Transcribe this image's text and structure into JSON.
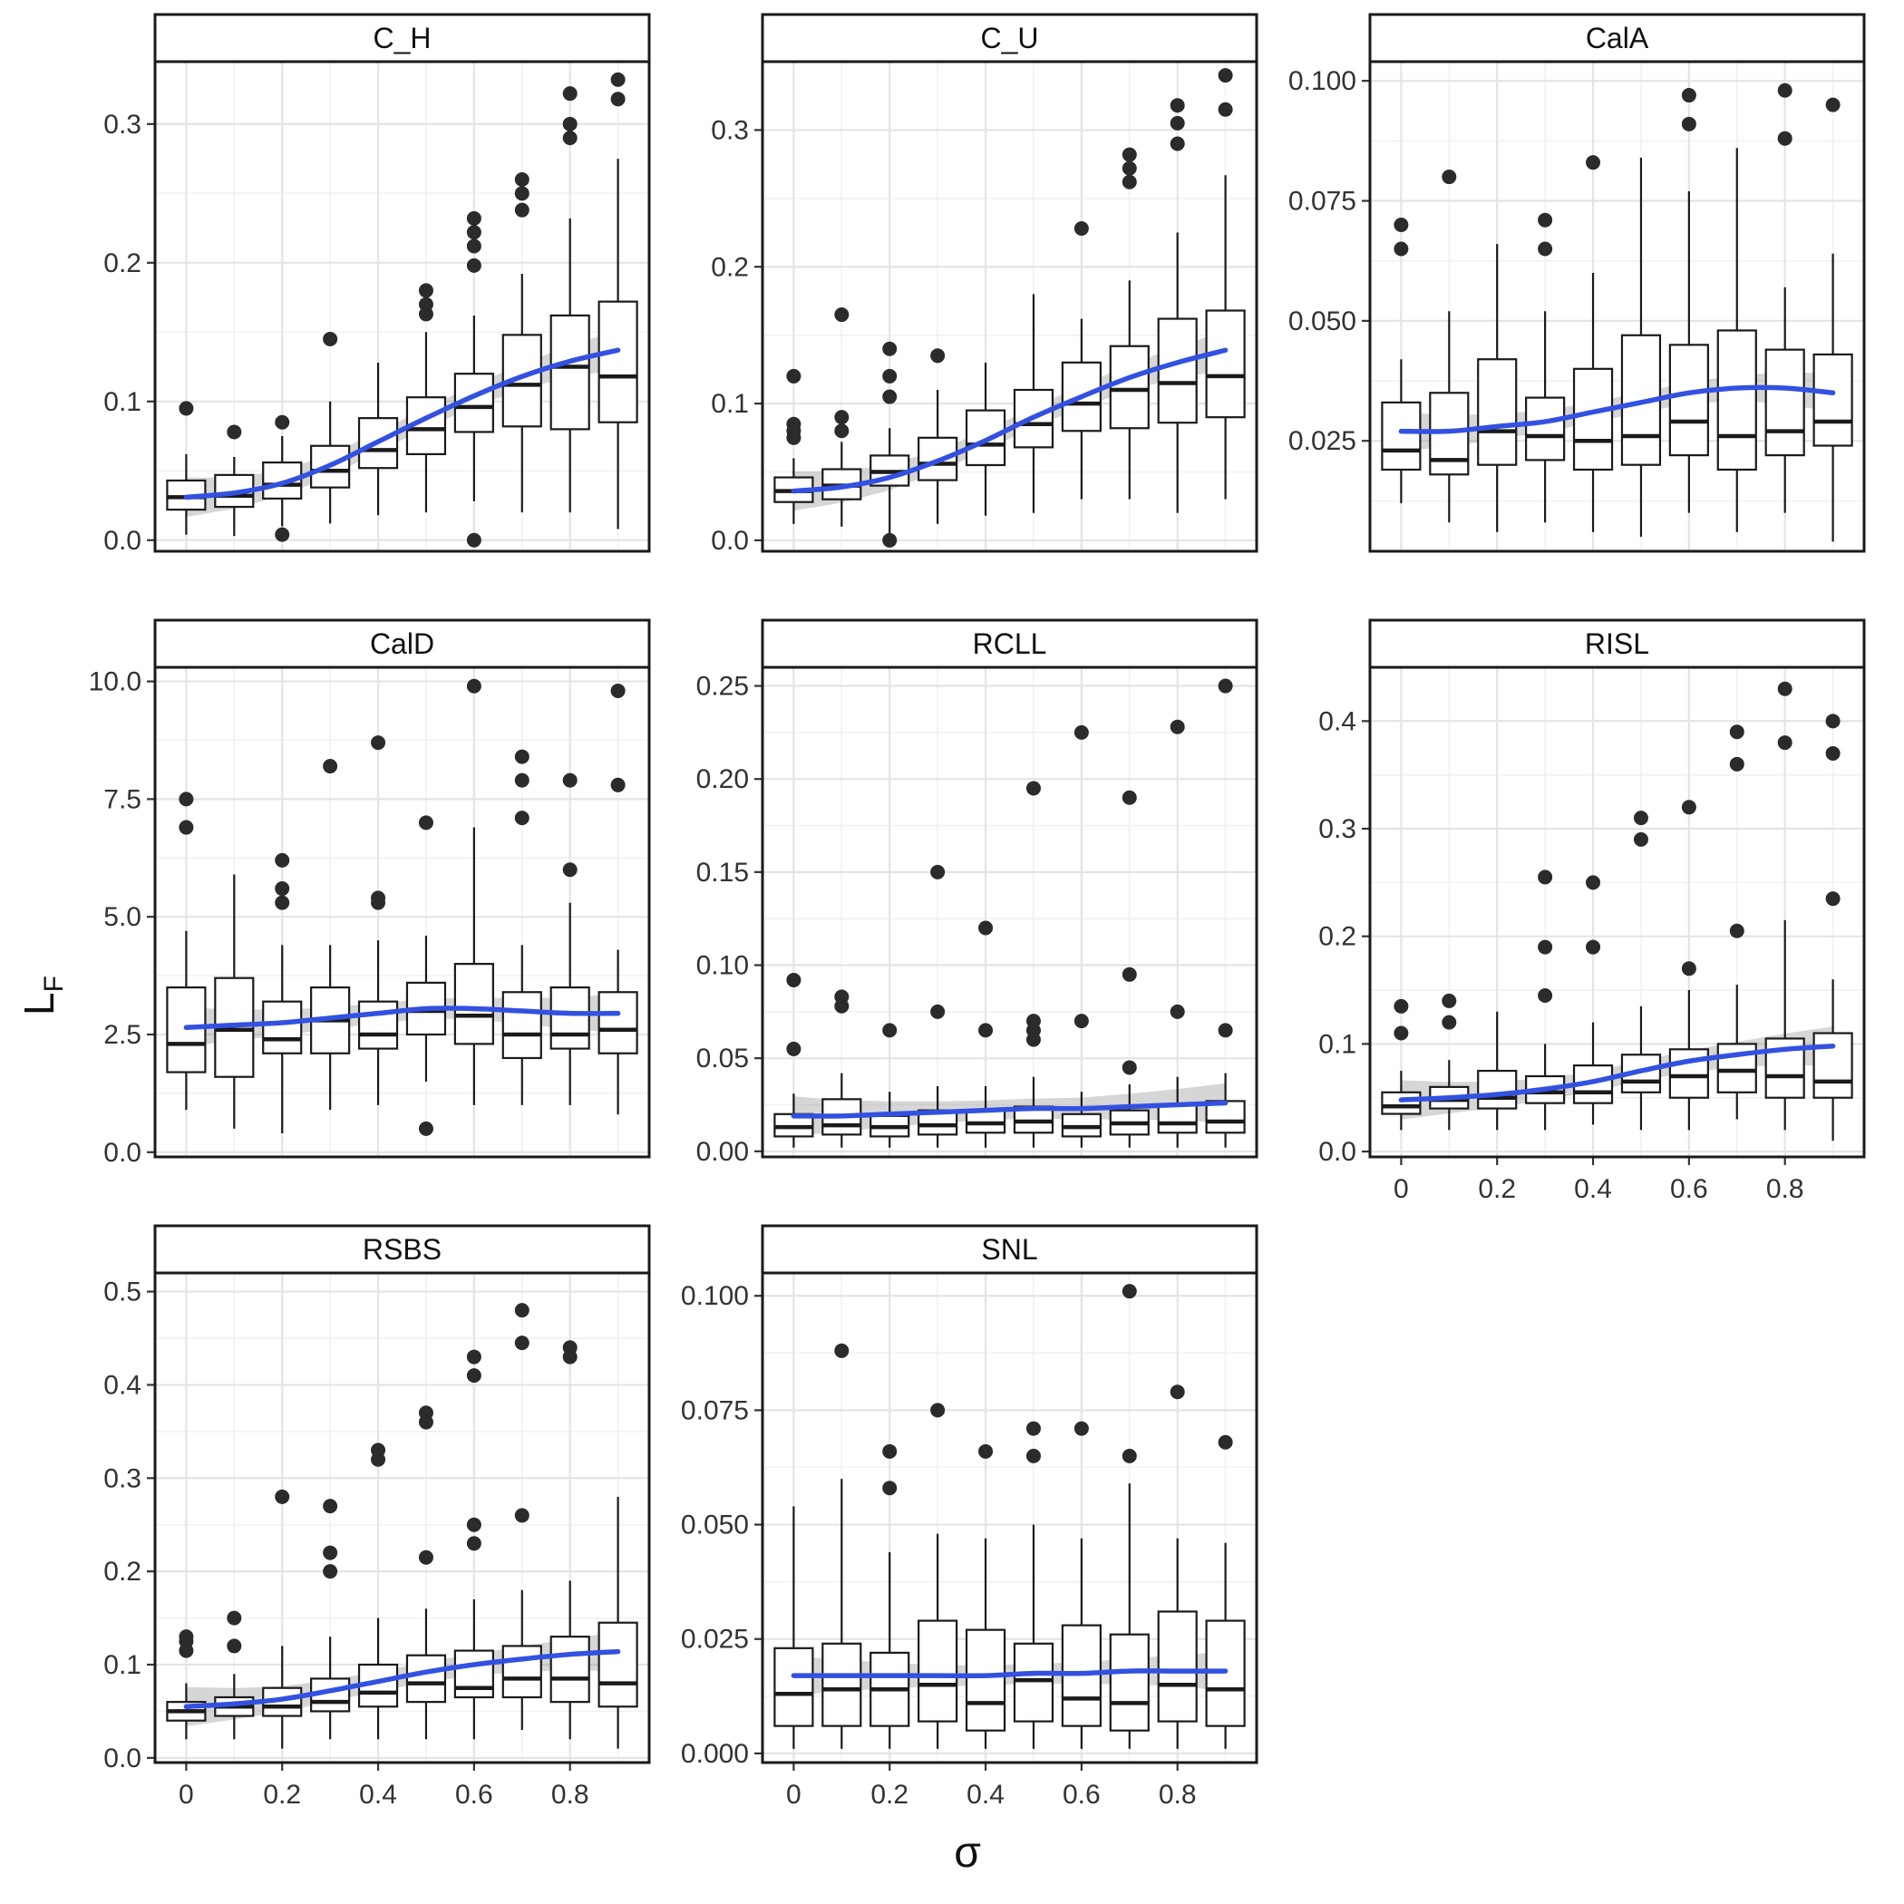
{
  "chart_data": {
    "type": "boxplot",
    "facet_layout": {
      "columns": 3,
      "rows": 3
    },
    "xlabel": "σ",
    "ylabel_main": "L",
    "ylabel_sub": "F",
    "x_values": [
      0,
      0.1,
      0.2,
      0.3,
      0.4,
      0.5,
      0.6,
      0.7,
      0.8,
      0.9
    ],
    "x_major_ticks": [
      0,
      0.2,
      0.4,
      0.6,
      0.8
    ],
    "x_tick_labels": [
      "0",
      "0.2",
      "0.4",
      "0.6",
      "0.8"
    ],
    "x_minor_ticks": [
      0.1,
      0.3,
      0.5,
      0.7,
      0.9
    ],
    "colors": {
      "smooth_line": "#3351E0",
      "confidence_band": "#808080",
      "box_fill": "#ffffff",
      "box_border": "#1a1a1a",
      "outlier": "#2b2b2b",
      "grid_major": "#E4E4E4",
      "grid_minor": "#F1F1F1",
      "panel_border": "#1a1a1a",
      "strip_fill": "#ffffff",
      "tick_text": "#333333"
    },
    "panels": [
      {
        "title": "C_H",
        "ylim": [
          -0.008,
          0.345
        ],
        "yticks": [
          0,
          0.1,
          0.2,
          0.3
        ],
        "ytick_labels": [
          "0.0",
          "0.1",
          "0.2",
          "0.3"
        ],
        "show_x_axis": false,
        "boxes": [
          [
            0.004,
            0.022,
            0.031,
            0.043,
            0.062
          ],
          [
            0.003,
            0.024,
            0.032,
            0.047,
            0.06
          ],
          [
            0.01,
            0.03,
            0.04,
            0.056,
            0.075
          ],
          [
            0.012,
            0.038,
            0.05,
            0.068,
            0.1
          ],
          [
            0.018,
            0.052,
            0.065,
            0.088,
            0.128
          ],
          [
            0.02,
            0.062,
            0.08,
            0.103,
            0.15
          ],
          [
            0.028,
            0.078,
            0.096,
            0.12,
            0.162
          ],
          [
            0.02,
            0.082,
            0.112,
            0.148,
            0.192
          ],
          [
            0.02,
            0.08,
            0.125,
            0.162,
            0.232
          ],
          [
            0.008,
            0.085,
            0.118,
            0.172,
            0.275
          ]
        ],
        "outliers": [
          [
            0.095
          ],
          [
            0.078
          ],
          [
            0.085,
            0.004
          ],
          [
            0.145
          ],
          [],
          [
            0.163,
            0.17,
            0.18
          ],
          [
            0.0,
            0.198,
            0.212,
            0.222,
            0.232
          ],
          [
            0.238,
            0.25,
            0.26
          ],
          [
            0.29,
            0.3,
            0.322
          ],
          [
            0.318,
            0.332
          ]
        ],
        "smooth": [
          0.031,
          0.034,
          0.041,
          0.054,
          0.071,
          0.088,
          0.104,
          0.118,
          0.129,
          0.137
        ]
      },
      {
        "title": "C_U",
        "ylim": [
          -0.008,
          0.35
        ],
        "yticks": [
          0,
          0.1,
          0.2,
          0.3
        ],
        "ytick_labels": [
          "0.0",
          "0.1",
          "0.2",
          "0.3"
        ],
        "show_x_axis": false,
        "boxes": [
          [
            0.012,
            0.028,
            0.036,
            0.046,
            0.06
          ],
          [
            0.01,
            0.03,
            0.04,
            0.052,
            0.072
          ],
          [
            0.002,
            0.04,
            0.05,
            0.062,
            0.082
          ],
          [
            0.012,
            0.044,
            0.056,
            0.075,
            0.11
          ],
          [
            0.018,
            0.055,
            0.07,
            0.095,
            0.13
          ],
          [
            0.02,
            0.068,
            0.085,
            0.11,
            0.18
          ],
          [
            0.03,
            0.08,
            0.1,
            0.13,
            0.162
          ],
          [
            0.03,
            0.082,
            0.11,
            0.142,
            0.19
          ],
          [
            0.02,
            0.086,
            0.115,
            0.162,
            0.225
          ],
          [
            0.03,
            0.09,
            0.12,
            0.168,
            0.267
          ]
        ],
        "outliers": [
          [
            0.12,
            0.085,
            0.08,
            0.075
          ],
          [
            0.165,
            0.09,
            0.08
          ],
          [
            0.14,
            0.12,
            0.105,
            0.0
          ],
          [
            0.135
          ],
          [],
          [],
          [
            0.228
          ],
          [
            0.262,
            0.272,
            0.282
          ],
          [
            0.29,
            0.305,
            0.318
          ],
          [
            0.315,
            0.34
          ]
        ],
        "smooth": [
          0.036,
          0.039,
          0.046,
          0.058,
          0.073,
          0.09,
          0.105,
          0.119,
          0.13,
          0.139
        ]
      },
      {
        "title": "CalA",
        "ylim": [
          0.002,
          0.104
        ],
        "yticks": [
          0.025,
          0.05,
          0.075,
          0.1
        ],
        "ytick_labels": [
          "0.025",
          "0.050",
          "0.075",
          "0.100"
        ],
        "show_x_axis": false,
        "boxes": [
          [
            0.012,
            0.019,
            0.023,
            0.033,
            0.042
          ],
          [
            0.008,
            0.018,
            0.021,
            0.035,
            0.052
          ],
          [
            0.006,
            0.02,
            0.027,
            0.042,
            0.066
          ],
          [
            0.008,
            0.021,
            0.026,
            0.034,
            0.052
          ],
          [
            0.006,
            0.019,
            0.025,
            0.04,
            0.06
          ],
          [
            0.005,
            0.02,
            0.026,
            0.047,
            0.084
          ],
          [
            0.01,
            0.022,
            0.029,
            0.045,
            0.077
          ],
          [
            0.006,
            0.019,
            0.026,
            0.048,
            0.086
          ],
          [
            0.01,
            0.022,
            0.027,
            0.044,
            0.057
          ],
          [
            0.004,
            0.024,
            0.029,
            0.043,
            0.064
          ]
        ],
        "outliers": [
          [
            0.07,
            0.065
          ],
          [
            0.08
          ],
          [],
          [
            0.071,
            0.065
          ],
          [
            0.083
          ],
          [],
          [
            0.097,
            0.091
          ],
          [],
          [
            0.098,
            0.088
          ],
          [
            0.095
          ]
        ],
        "smooth": [
          0.027,
          0.027,
          0.028,
          0.029,
          0.031,
          0.033,
          0.035,
          0.036,
          0.036,
          0.035
        ]
      },
      {
        "title": "CalD",
        "ylim": [
          -0.1,
          10.3
        ],
        "yticks": [
          0,
          2.5,
          5,
          7.5,
          10
        ],
        "ytick_labels": [
          "0.0",
          "2.5",
          "5.0",
          "7.5",
          "10.0"
        ],
        "show_x_axis": false,
        "boxes": [
          [
            0.9,
            1.7,
            2.3,
            3.5,
            4.7
          ],
          [
            0.5,
            1.6,
            2.6,
            3.7,
            5.9
          ],
          [
            0.4,
            2.1,
            2.4,
            3.2,
            4.4
          ],
          [
            0.9,
            2.1,
            2.8,
            3.5,
            4.4
          ],
          [
            1.0,
            2.2,
            2.5,
            3.2,
            4.5
          ],
          [
            1.5,
            2.5,
            3.0,
            3.6,
            4.6
          ],
          [
            1.0,
            2.3,
            2.9,
            4.0,
            6.9
          ],
          [
            1.0,
            2.0,
            2.5,
            3.4,
            4.4
          ],
          [
            1.0,
            2.2,
            2.5,
            3.5,
            5.3
          ],
          [
            0.8,
            2.1,
            2.6,
            3.4,
            4.3
          ]
        ],
        "outliers": [
          [
            7.5,
            6.9
          ],
          [],
          [
            6.2,
            5.6,
            5.3
          ],
          [
            8.2
          ],
          [
            8.7,
            5.4,
            5.3
          ],
          [
            7.0,
            0.5
          ],
          [
            9.9
          ],
          [
            8.4,
            7.9,
            7.1
          ],
          [
            7.9,
            6.0
          ],
          [
            9.8,
            7.8
          ]
        ],
        "smooth": [
          2.65,
          2.7,
          2.75,
          2.85,
          2.95,
          3.05,
          3.05,
          3.0,
          2.95,
          2.95
        ]
      },
      {
        "title": "RCLL",
        "ylim": [
          -0.003,
          0.26
        ],
        "yticks": [
          0,
          0.05,
          0.1,
          0.15,
          0.2,
          0.25
        ],
        "ytick_labels": [
          "0.00",
          "0.05",
          "0.10",
          "0.15",
          "0.20",
          "0.25"
        ],
        "show_x_axis": false,
        "boxes": [
          [
            0.002,
            0.008,
            0.013,
            0.02,
            0.031
          ],
          [
            0.002,
            0.009,
            0.014,
            0.028,
            0.042
          ],
          [
            0.002,
            0.008,
            0.013,
            0.019,
            0.032
          ],
          [
            0.002,
            0.009,
            0.014,
            0.022,
            0.035
          ],
          [
            0.002,
            0.01,
            0.015,
            0.022,
            0.035
          ],
          [
            0.002,
            0.01,
            0.016,
            0.024,
            0.04
          ],
          [
            0.002,
            0.008,
            0.013,
            0.02,
            0.032
          ],
          [
            0.002,
            0.009,
            0.015,
            0.022,
            0.036
          ],
          [
            0.002,
            0.01,
            0.015,
            0.025,
            0.04
          ],
          [
            0.002,
            0.01,
            0.016,
            0.027,
            0.042
          ]
        ],
        "outliers": [
          [
            0.092,
            0.055
          ],
          [
            0.083,
            0.078
          ],
          [
            0.065
          ],
          [
            0.15,
            0.075
          ],
          [
            0.12,
            0.065
          ],
          [
            0.195,
            0.07,
            0.065,
            0.06
          ],
          [
            0.225,
            0.07
          ],
          [
            0.19,
            0.095,
            0.045
          ],
          [
            0.228,
            0.075
          ],
          [
            0.25,
            0.065
          ]
        ],
        "smooth": [
          0.019,
          0.019,
          0.02,
          0.021,
          0.022,
          0.023,
          0.023,
          0.024,
          0.025,
          0.026
        ]
      },
      {
        "title": "RISL",
        "ylim": [
          -0.005,
          0.45
        ],
        "yticks": [
          0,
          0.1,
          0.2,
          0.3,
          0.4
        ],
        "ytick_labels": [
          "0.0",
          "0.1",
          "0.2",
          "0.3",
          "0.4"
        ],
        "show_x_axis": true,
        "boxes": [
          [
            0.02,
            0.035,
            0.042,
            0.055,
            0.075
          ],
          [
            0.02,
            0.04,
            0.048,
            0.06,
            0.085
          ],
          [
            0.02,
            0.04,
            0.05,
            0.075,
            0.13
          ],
          [
            0.02,
            0.045,
            0.055,
            0.07,
            0.1
          ],
          [
            0.025,
            0.045,
            0.055,
            0.08,
            0.12
          ],
          [
            0.02,
            0.055,
            0.065,
            0.09,
            0.135
          ],
          [
            0.02,
            0.05,
            0.07,
            0.095,
            0.15
          ],
          [
            0.03,
            0.055,
            0.075,
            0.1,
            0.155
          ],
          [
            0.02,
            0.05,
            0.07,
            0.105,
            0.215
          ],
          [
            0.01,
            0.05,
            0.065,
            0.11,
            0.16
          ]
        ],
        "outliers": [
          [
            0.135,
            0.11
          ],
          [
            0.14,
            0.12
          ],
          [],
          [
            0.255,
            0.19,
            0.145
          ],
          [
            0.25,
            0.19
          ],
          [
            0.31,
            0.29
          ],
          [
            0.32,
            0.17
          ],
          [
            0.39,
            0.36,
            0.205
          ],
          [
            0.43,
            0.38
          ],
          [
            0.4,
            0.37,
            0.235
          ]
        ],
        "smooth": [
          0.048,
          0.05,
          0.053,
          0.058,
          0.065,
          0.075,
          0.084,
          0.09,
          0.095,
          0.098
        ]
      },
      {
        "title": "RSBS",
        "ylim": [
          -0.005,
          0.52
        ],
        "yticks": [
          0,
          0.1,
          0.2,
          0.3,
          0.4,
          0.5
        ],
        "ytick_labels": [
          "0.0",
          "0.1",
          "0.2",
          "0.3",
          "0.4",
          "0.5"
        ],
        "show_x_axis": true,
        "boxes": [
          [
            0.02,
            0.04,
            0.05,
            0.06,
            0.08
          ],
          [
            0.02,
            0.045,
            0.055,
            0.065,
            0.09
          ],
          [
            0.01,
            0.045,
            0.055,
            0.075,
            0.12
          ],
          [
            0.02,
            0.05,
            0.06,
            0.085,
            0.13
          ],
          [
            0.02,
            0.055,
            0.07,
            0.1,
            0.15
          ],
          [
            0.02,
            0.06,
            0.08,
            0.11,
            0.16
          ],
          [
            0.02,
            0.065,
            0.075,
            0.115,
            0.17
          ],
          [
            0.03,
            0.065,
            0.085,
            0.12,
            0.18
          ],
          [
            0.02,
            0.06,
            0.085,
            0.13,
            0.19
          ],
          [
            0.01,
            0.055,
            0.08,
            0.145,
            0.28
          ]
        ],
        "outliers": [
          [
            0.13,
            0.125,
            0.115
          ],
          [
            0.15,
            0.12
          ],
          [
            0.28
          ],
          [
            0.27,
            0.22,
            0.2
          ],
          [
            0.33,
            0.32
          ],
          [
            0.37,
            0.36,
            0.215
          ],
          [
            0.43,
            0.41,
            0.25,
            0.23
          ],
          [
            0.48,
            0.445,
            0.26
          ],
          [
            0.44,
            0.43
          ],
          []
        ],
        "smooth": [
          0.055,
          0.058,
          0.063,
          0.072,
          0.082,
          0.092,
          0.1,
          0.106,
          0.111,
          0.114
        ]
      },
      {
        "title": "SNL",
        "ylim": [
          -0.002,
          0.105
        ],
        "yticks": [
          0,
          0.025,
          0.05,
          0.075,
          0.1
        ],
        "ytick_labels": [
          "0.000",
          "0.025",
          "0.050",
          "0.075",
          "0.100"
        ],
        "show_x_axis": true,
        "boxes": [
          [
            0.001,
            0.006,
            0.013,
            0.023,
            0.054
          ],
          [
            0.001,
            0.006,
            0.014,
            0.024,
            0.06
          ],
          [
            0.001,
            0.006,
            0.014,
            0.022,
            0.044
          ],
          [
            0.001,
            0.007,
            0.015,
            0.029,
            0.048
          ],
          [
            0.001,
            0.005,
            0.011,
            0.027,
            0.047
          ],
          [
            0.001,
            0.007,
            0.016,
            0.024,
            0.05
          ],
          [
            0.001,
            0.006,
            0.012,
            0.028,
            0.047
          ],
          [
            0.001,
            0.005,
            0.011,
            0.026,
            0.059
          ],
          [
            0.001,
            0.007,
            0.015,
            0.031,
            0.047
          ],
          [
            0.001,
            0.006,
            0.014,
            0.029,
            0.046
          ]
        ],
        "outliers": [
          [],
          [
            0.088
          ],
          [
            0.066,
            0.058
          ],
          [
            0.075
          ],
          [
            0.066
          ],
          [
            0.071,
            0.065
          ],
          [
            0.071
          ],
          [
            0.101,
            0.065
          ],
          [
            0.079
          ],
          [
            0.068
          ]
        ],
        "smooth": [
          0.017,
          0.017,
          0.017,
          0.017,
          0.017,
          0.0175,
          0.0175,
          0.018,
          0.018,
          0.018
        ]
      }
    ]
  }
}
